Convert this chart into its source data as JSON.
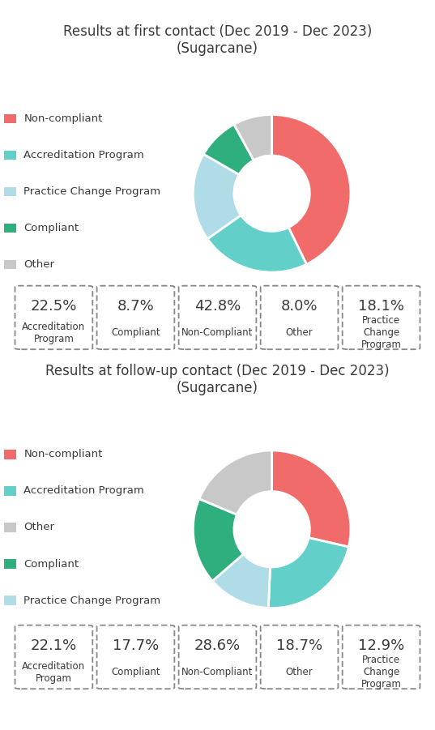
{
  "chart1": {
    "title": "Results at first contact (Dec 2019 - Dec 2023)\n(Sugarcane)",
    "slices": [
      42.8,
      22.5,
      18.1,
      8.7,
      8.0
    ],
    "colors": [
      "#F26B6B",
      "#63CFC9",
      "#B0DCE8",
      "#2EAF7D",
      "#C8C8C8"
    ],
    "legend_labels": [
      "Non-compliant",
      "Accreditation Program",
      "Practice Change Program",
      "Compliant",
      "Other"
    ],
    "legend_colors": [
      "#F26B6B",
      "#63CFC9",
      "#B0DCE8",
      "#2EAF7D",
      "#C8C8C8"
    ],
    "startangle": 90,
    "boxes": [
      {
        "pct": "22.5%",
        "label": "Accreditation\nProgram"
      },
      {
        "pct": "8.7%",
        "label": "Compliant"
      },
      {
        "pct": "42.8%",
        "label": "Non-Compliant"
      },
      {
        "pct": "8.0%",
        "label": "Other"
      },
      {
        "pct": "18.1%",
        "label": "Practice\nChange\nProgram"
      }
    ]
  },
  "chart2": {
    "title": "Results at follow-up contact (Dec 2019 - Dec 2023)\n(Sugarcane)",
    "slices": [
      28.6,
      22.1,
      12.9,
      17.7,
      18.7
    ],
    "colors": [
      "#F26B6B",
      "#63CFC9",
      "#B0DCE8",
      "#2EAF7D",
      "#C8C8C8"
    ],
    "legend_labels": [
      "Non-compliant",
      "Accreditation Program",
      "Other",
      "Compliant",
      "Practice Change Program"
    ],
    "legend_colors": [
      "#F26B6B",
      "#63CFC9",
      "#C8C8C8",
      "#2EAF7D",
      "#B0DCE8"
    ],
    "startangle": 90,
    "boxes": [
      {
        "pct": "22.1%",
        "label": "Accreditation\nProgam"
      },
      {
        "pct": "17.7%",
        "label": "Compliant"
      },
      {
        "pct": "28.6%",
        "label": "Non-Compliant"
      },
      {
        "pct": "18.7%",
        "label": "Other"
      },
      {
        "pct": "12.9%",
        "label": "Practice\nChange\nProgram"
      }
    ]
  },
  "bg_color": "#FFFFFF",
  "text_color": "#3A3A3A",
  "box_border_color": "#888888",
  "pct_fontsize": 13,
  "label_fontsize": 8.5,
  "title_fontsize": 12,
  "legend_fontsize": 9.5
}
